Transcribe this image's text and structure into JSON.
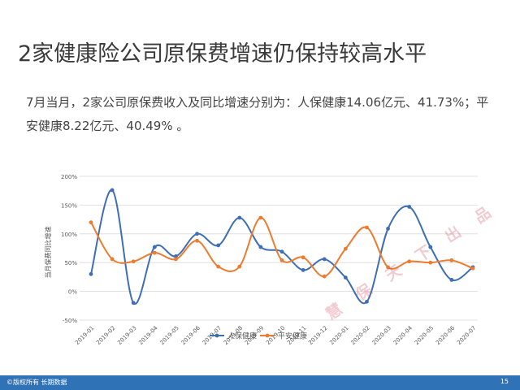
{
  "title": "2家健康险公司原保费增速仍保持较高水平",
  "subtitle": "7月当月，2家公司原保费收入及同比增速分别为：人保健康14.06亿元、41.73%；平安健康8.22亿元、40.49% 。",
  "footer": {
    "left": "©版权所有 长期数据",
    "page": "15"
  },
  "watermark": "慧 保 天 下 出 品",
  "chart_data": {
    "type": "line",
    "ylabel": "当月保费同比增速",
    "ylim": [
      -50,
      200
    ],
    "yticks": [
      -50,
      0,
      50,
      100,
      150,
      200
    ],
    "ytick_labels": [
      "-50%",
      "0%",
      "50%",
      "100%",
      "150%",
      "200%"
    ],
    "categories": [
      "2019-01",
      "2019-02",
      "2019-03",
      "2019-04",
      "2019-05",
      "2019-06",
      "2019-07",
      "2019-08",
      "2019-09",
      "2019-10",
      "2019-11",
      "2019-12",
      "2020-01",
      "2020-02",
      "2020-03",
      "2020-04",
      "2020-05",
      "2020-06",
      "2020-07"
    ],
    "legend_position": "bottom",
    "series": [
      {
        "name": "人保健康",
        "color": "#3e6fb4",
        "values": [
          30,
          176,
          -20,
          77,
          61,
          100,
          80,
          128,
          77,
          69,
          37,
          56,
          24,
          -18,
          109,
          147,
          77,
          20,
          42
        ]
      },
      {
        "name": "平安健康",
        "color": "#ec7c30",
        "values": [
          120,
          56,
          52,
          67,
          56,
          88,
          43,
          43,
          128,
          54,
          59,
          26,
          74,
          111,
          42,
          52,
          50,
          54,
          40
        ]
      }
    ]
  }
}
